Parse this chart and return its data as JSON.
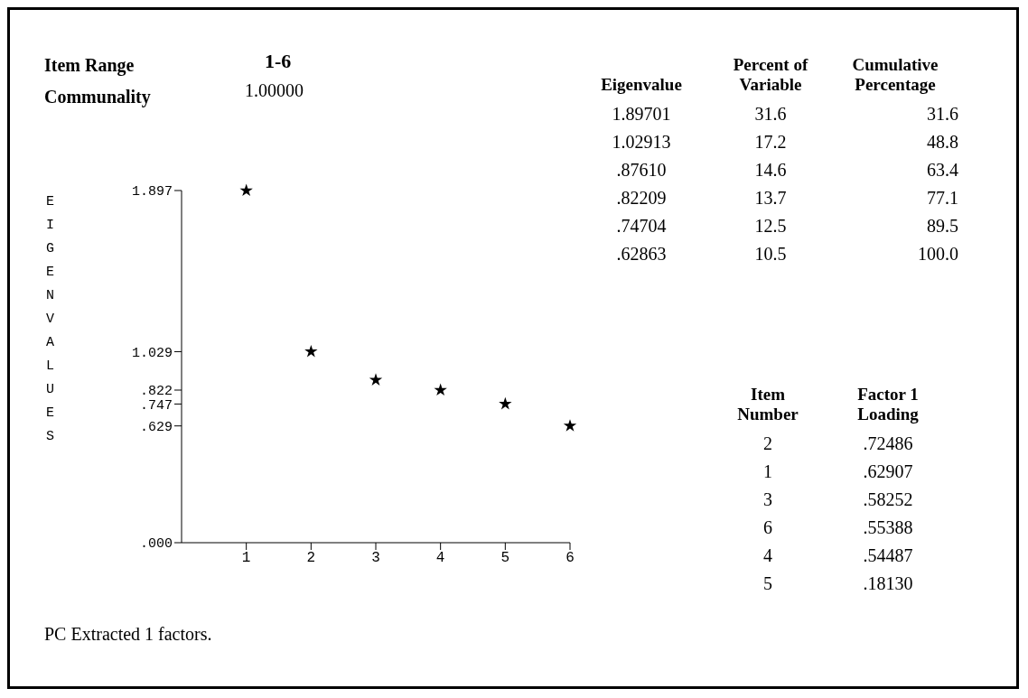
{
  "chart_data": [
    {
      "type": "scatter",
      "ylabel": "EIGENVALUES",
      "x": [
        1,
        2,
        3,
        4,
        5,
        6
      ],
      "values": [
        1.897,
        1.029,
        0.876,
        0.822,
        0.747,
        0.629
      ],
      "color": "#000000",
      "marker": "star",
      "grid": false,
      "legend": false,
      "xlim": [
        0,
        6
      ],
      "xticks": [
        1,
        2,
        3,
        4,
        5,
        6
      ],
      "ylim": [
        0,
        1.897
      ],
      "yticks": [
        {
          "value": 0,
          "label": ".000"
        },
        {
          "value": 0.629,
          "label": ".629"
        },
        {
          "value": 0.747,
          "label": ".747"
        },
        {
          "value": 0.822,
          "label": ".822"
        },
        1.029,
        1.897
      ],
      "annotations": [
        "Item Range",
        "1-6",
        "Communality",
        "1.00000",
        "PC Extracted   1 factors."
      ]
    },
    {
      "type": "other",
      "categories": [
        "Eigenvalue",
        "Percent of Variable",
        "Cumulative Percentage"
      ],
      "annotations": [
        "1.89701",
        "31.6",
        "31.6",
        "1.02913",
        "17.2",
        "48.8",
        ".87610",
        "14.6",
        "63.4",
        ".82209",
        "13.7",
        "77.1",
        ".74704",
        "12.5",
        "89.5",
        ".62863",
        "10.5",
        "100.0"
      ]
    },
    {
      "type": "other",
      "categories": [
        "Item Number",
        "Factor 1 Loading"
      ],
      "annotations": [
        "2",
        ".72486",
        "1",
        ".62907",
        "3",
        ".58252",
        "6",
        ".55388",
        "4",
        ".54487",
        "5",
        ".18130"
      ]
    }
  ]
}
